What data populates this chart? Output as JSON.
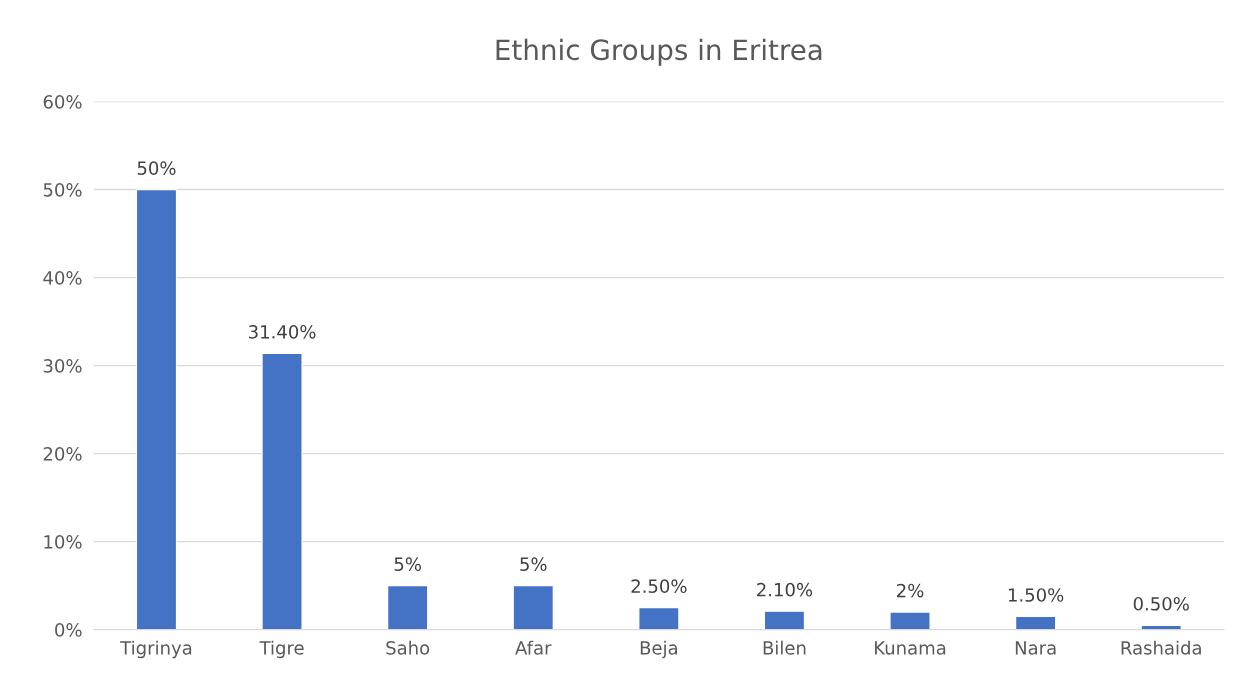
{
  "chart_data": {
    "type": "bar",
    "title": "Ethnic Groups in Eritrea",
    "categories": [
      "Tigrinya",
      "Tigre",
      "Saho",
      "Afar",
      "Beja",
      "Bilen",
      "Kunama",
      "Nara",
      "Rashaida"
    ],
    "values": [
      50,
      31.4,
      5,
      5,
      2.5,
      2.1,
      2,
      1.5,
      0.5
    ],
    "value_labels": [
      "50%",
      "31.40%",
      "5%",
      "5%",
      "2.50%",
      "2.10%",
      "2%",
      "1.50%",
      "0.50%"
    ],
    "color": "#4472c4",
    "ylim": [
      0,
      60
    ],
    "yticks": [
      {
        "value": 0,
        "label": "0%"
      },
      {
        "value": 10,
        "label": "10%"
      },
      {
        "value": 20,
        "label": "20%"
      },
      {
        "value": 30,
        "label": "30%"
      },
      {
        "value": 40,
        "label": "40%"
      },
      {
        "value": 50,
        "label": "50%"
      },
      {
        "value": 60,
        "label": "60%"
      }
    ],
    "grid": "y"
  }
}
